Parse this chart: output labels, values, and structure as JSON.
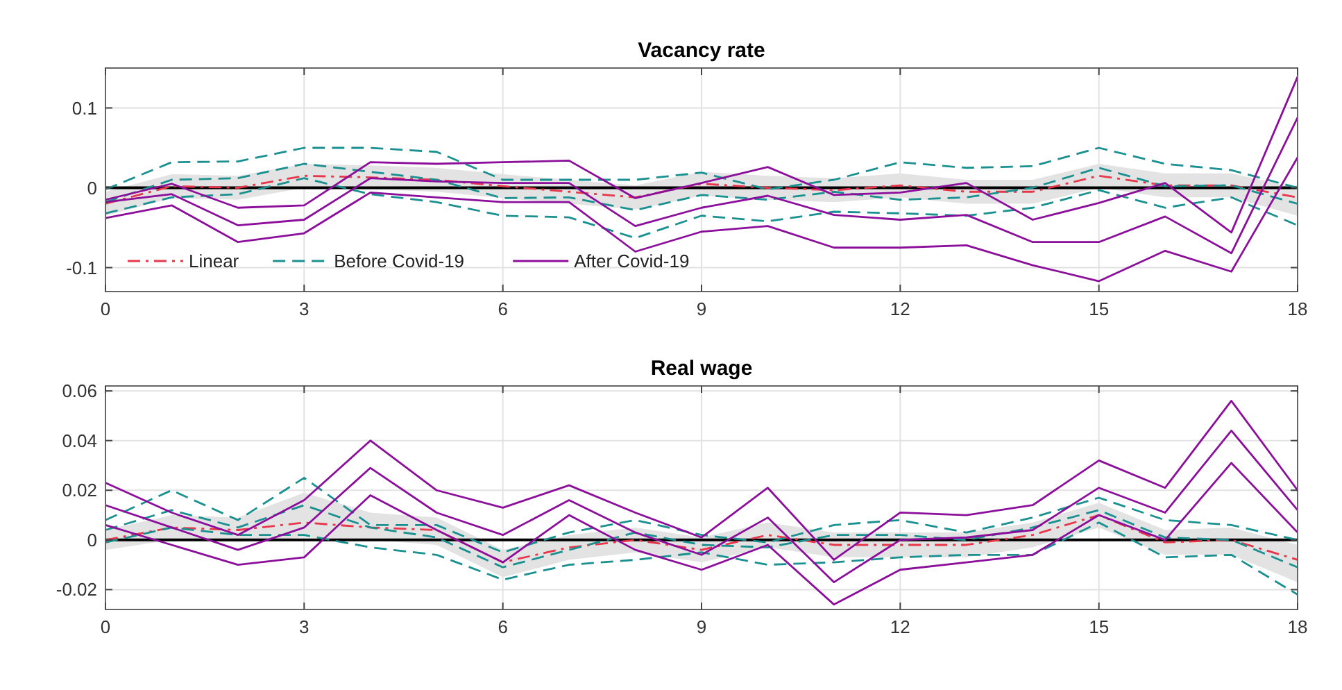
{
  "chart_data": [
    {
      "type": "line",
      "title": "Vacancy rate",
      "x": [
        0,
        1,
        2,
        3,
        4,
        5,
        6,
        7,
        8,
        9,
        10,
        11,
        12,
        13,
        14,
        15,
        16,
        17,
        18
      ],
      "xlim": [
        0,
        18
      ],
      "xticks": [
        0,
        3,
        6,
        9,
        12,
        15,
        18
      ],
      "ylim": [
        -0.13,
        0.15
      ],
      "yticks": [
        -0.1,
        0,
        0.1
      ],
      "grid": true,
      "legend": "bottom left",
      "ref_lines": [
        {
          "axis": "y",
          "value": 0,
          "color": "#000000"
        }
      ],
      "series": [
        {
          "name": "Linear",
          "color": "#e8364a",
          "line_style": "dashdot",
          "values": [
            -0.02,
            0.002,
            0,
            0.015,
            0.013,
            0.01,
            0.002,
            -0.005,
            -0.012,
            0.005,
            0,
            -0.003,
            0.003,
            -0.005,
            -0.005,
            0.015,
            0.003,
            0.003,
            -0.012
          ],
          "lower": [
            -0.035,
            -0.013,
            -0.015,
            0.0,
            -0.002,
            -0.005,
            -0.013,
            -0.02,
            -0.027,
            -0.01,
            -0.015,
            -0.018,
            -0.012,
            -0.02,
            -0.02,
            0.0,
            -0.012,
            -0.012,
            -0.035
          ],
          "upper": [
            -0.005,
            0.017,
            0.015,
            0.03,
            0.028,
            0.025,
            0.017,
            0.01,
            0.003,
            0.02,
            0.015,
            0.012,
            0.018,
            0.01,
            0.01,
            0.03,
            0.018,
            0.018,
            0.0
          ]
        },
        {
          "name": "Before Covid-19",
          "color": "#1a9090",
          "line_style": "dashed",
          "values": [
            -0.018,
            0.01,
            0.012,
            0.03,
            0.02,
            0.01,
            -0.013,
            -0.012,
            -0.028,
            -0.009,
            -0.015,
            -0.005,
            -0.015,
            -0.012,
            0,
            0.025,
            0.002,
            0.003,
            -0.02
          ]
        },
        {
          "color": "#1a9090",
          "line_style": "dashed",
          "values": [
            -0.002,
            0.032,
            0.033,
            0.05,
            0.05,
            0.045,
            0.01,
            0.01,
            0.01,
            0.019,
            -0.002,
            0.01,
            0.032,
            0.025,
            0.027,
            0.05,
            0.03,
            0.022,
            0
          ]
        },
        {
          "color": "#1a9090",
          "line_style": "dashed",
          "values": [
            -0.032,
            -0.012,
            -0.008,
            0.012,
            -0.008,
            -0.018,
            -0.035,
            -0.037,
            -0.063,
            -0.035,
            -0.042,
            -0.03,
            -0.032,
            -0.035,
            -0.025,
            -0.003,
            -0.025,
            -0.012,
            -0.047
          ]
        },
        {
          "name": "After Covid-19",
          "color": "#8b0f9b",
          "line_style": "solid",
          "values": [
            -0.018,
            -0.008,
            -0.047,
            -0.04,
            0.012,
            0.008,
            0.006,
            0.006,
            -0.048,
            -0.025,
            -0.01,
            -0.034,
            -0.04,
            -0.034,
            -0.068,
            -0.068,
            -0.036,
            -0.082,
            0.088
          ]
        },
        {
          "color": "#8b0f9b",
          "line_style": "solid",
          "values": [
            -0.015,
            0.005,
            -0.025,
            -0.022,
            0.032,
            0.03,
            0.032,
            0.034,
            -0.013,
            0.006,
            0.026,
            -0.009,
            -0.006,
            0.006,
            -0.04,
            -0.019,
            0.006,
            -0.056,
            0.139
          ]
        },
        {
          "color": "#8b0f9b",
          "line_style": "solid",
          "values": [
            -0.038,
            -0.022,
            -0.068,
            -0.057,
            -0.006,
            -0.012,
            -0.018,
            -0.018,
            -0.08,
            -0.055,
            -0.048,
            -0.075,
            -0.075,
            -0.072,
            -0.097,
            -0.117,
            -0.079,
            -0.105,
            0.038
          ]
        }
      ]
    },
    {
      "type": "line",
      "title": "Real wage",
      "x": [
        0,
        1,
        2,
        3,
        4,
        5,
        6,
        7,
        8,
        9,
        10,
        11,
        12,
        13,
        14,
        15,
        16,
        17,
        18
      ],
      "xlim": [
        0,
        18
      ],
      "xticks": [
        0,
        3,
        6,
        9,
        12,
        15,
        18
      ],
      "ylim": [
        -0.028,
        0.062
      ],
      "yticks": [
        -0.02,
        0,
        0.02,
        0.04,
        0.06
      ],
      "grid": true,
      "ref_lines": [
        {
          "axis": "y",
          "value": 0,
          "color": "#000000"
        }
      ],
      "series": [
        {
          "color": "#e8364a",
          "line_style": "dashdot",
          "values": [
            0,
            0.005,
            0.004,
            0.007,
            0.005,
            0.004,
            -0.009,
            -0.003,
            0,
            -0.004,
            0.002,
            -0.002,
            -0.002,
            -0.002,
            0.002,
            0.01,
            -0.001,
            0,
            -0.008
          ],
          "lower": [
            -0.004,
            0.0,
            -0.001,
            0.001,
            0.0,
            -0.002,
            -0.015,
            -0.008,
            -0.005,
            -0.009,
            -0.003,
            -0.007,
            -0.007,
            -0.007,
            -0.003,
            0.005,
            -0.006,
            -0.006,
            -0.017
          ],
          "upper": [
            0.004,
            0.01,
            0.009,
            0.019,
            0.011,
            0.009,
            -0.004,
            0.002,
            0.005,
            0.001,
            0.007,
            0.003,
            0.003,
            0.003,
            0.007,
            0.015,
            0.004,
            0.005,
            -0.002
          ]
        },
        {
          "color": "#1a9090",
          "line_style": "dashed",
          "values": [
            0.004,
            0.012,
            0.005,
            0.014,
            0.005,
            0.001,
            -0.011,
            -0.004,
            0.003,
            -0.002,
            -0.003,
            0.002,
            0.002,
            0,
            0.005,
            0.012,
            0.001,
            0,
            -0.011
          ]
        },
        {
          "color": "#1a9090",
          "line_style": "dashed",
          "values": [
            0.008,
            0.02,
            0.008,
            0.025,
            0.006,
            0.006,
            -0.005,
            0.003,
            0.008,
            0.002,
            -0.001,
            0.006,
            0.008,
            0.003,
            0.009,
            0.017,
            0.008,
            0.006,
            0
          ]
        },
        {
          "color": "#1a9090",
          "line_style": "dashed",
          "values": [
            -0.001,
            0.005,
            0.002,
            0.002,
            -0.003,
            -0.006,
            -0.016,
            -0.01,
            -0.008,
            -0.005,
            -0.01,
            -0.009,
            -0.007,
            -0.006,
            -0.006,
            0.007,
            -0.007,
            -0.006,
            -0.022
          ]
        },
        {
          "color": "#8b0f9b",
          "line_style": "solid",
          "values": [
            0.014,
            0.005,
            -0.004,
            0.005,
            0.029,
            0.011,
            0.002,
            0.016,
            0.003,
            -0.006,
            0.009,
            -0.017,
            0,
            0.001,
            0.004,
            0.021,
            0.011,
            0.044,
            0.012
          ]
        },
        {
          "color": "#8b0f9b",
          "line_style": "solid",
          "values": [
            0.023,
            0.011,
            0.002,
            0.016,
            0.04,
            0.02,
            0.013,
            0.022,
            0.011,
            0.001,
            0.021,
            -0.008,
            0.011,
            0.01,
            0.014,
            0.032,
            0.021,
            0.056,
            0.02
          ]
        },
        {
          "color": "#8b0f9b",
          "line_style": "solid",
          "values": [
            0.006,
            -0.002,
            -0.01,
            -0.007,
            0.018,
            0.004,
            -0.009,
            0.01,
            -0.004,
            -0.012,
            -0.002,
            -0.026,
            -0.012,
            -0.009,
            -0.006,
            0.01,
            0,
            0.031,
            0.003
          ]
        }
      ]
    }
  ]
}
